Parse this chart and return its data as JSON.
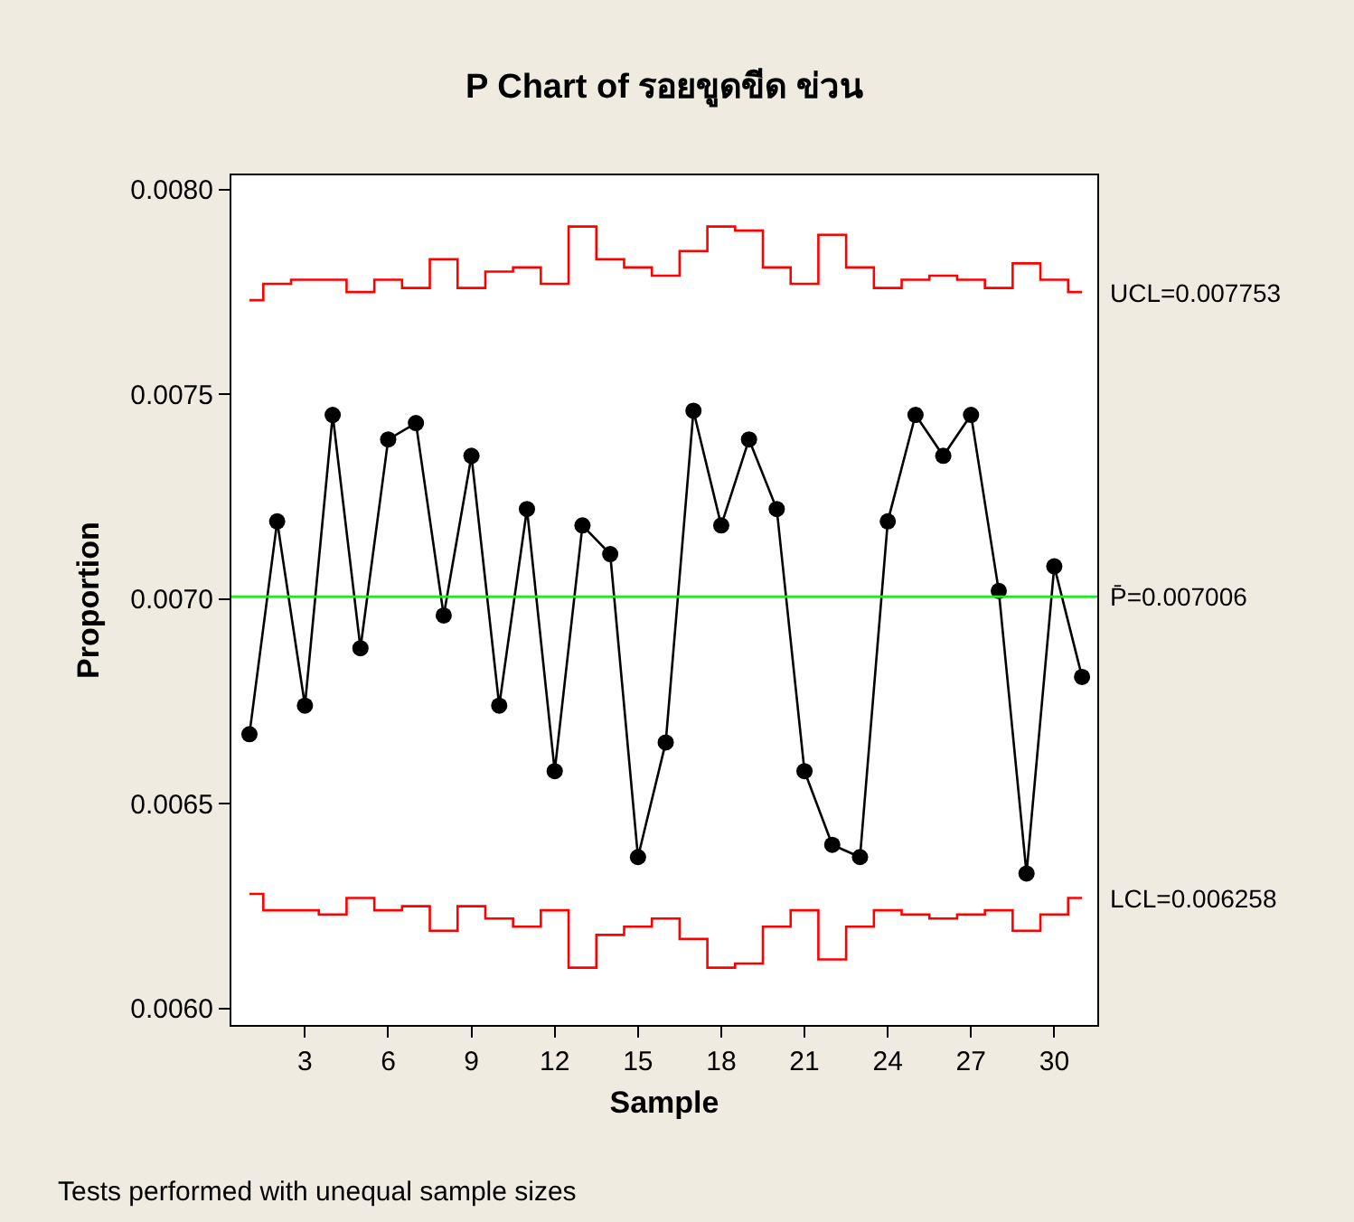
{
  "chart_data": {
    "type": "line",
    "title": "P Chart of รอยขูดขีด ข่วน",
    "xlabel": "Sample",
    "ylabel": "Proportion",
    "x": [
      1,
      2,
      3,
      4,
      5,
      6,
      7,
      8,
      9,
      10,
      11,
      12,
      13,
      14,
      15,
      16,
      17,
      18,
      19,
      20,
      21,
      22,
      23,
      24,
      25,
      26,
      27,
      28,
      29,
      30,
      31
    ],
    "series": [
      {
        "marker": "circle",
        "color": "#000000",
        "values": [
          0.00667,
          0.00719,
          0.00674,
          0.00745,
          0.00688,
          0.00739,
          0.00743,
          0.00696,
          0.00735,
          0.00674,
          0.00722,
          0.00658,
          0.00718,
          0.00711,
          0.00637,
          0.00665,
          0.00746,
          0.00718,
          0.00739,
          0.00722,
          0.00658,
          0.0064,
          0.00637,
          0.00719,
          0.00745,
          0.00735,
          0.00745,
          0.00702,
          0.00633,
          0.00708,
          0.00681
        ]
      },
      {
        "type": "step",
        "name": "UCL=0.007753",
        "color": "#ff0000",
        "values": [
          0.00773,
          0.00777,
          0.00778,
          0.00778,
          0.00775,
          0.00778,
          0.00776,
          0.00783,
          0.00776,
          0.0078,
          0.00781,
          0.00777,
          0.00791,
          0.00783,
          0.00781,
          0.00779,
          0.00785,
          0.00791,
          0.0079,
          0.00781,
          0.00777,
          0.00789,
          0.00781,
          0.00776,
          0.00778,
          0.00779,
          0.00778,
          0.00776,
          0.00782,
          0.00778,
          0.00775
        ]
      },
      {
        "type": "step",
        "name": "LCL=0.006258",
        "color": "#ff0000",
        "values": [
          0.00628,
          0.00624,
          0.00624,
          0.00623,
          0.00627,
          0.00624,
          0.00625,
          0.00619,
          0.00625,
          0.00622,
          0.0062,
          0.00624,
          0.0061,
          0.00618,
          0.0062,
          0.00622,
          0.00617,
          0.0061,
          0.00611,
          0.0062,
          0.00624,
          0.00612,
          0.0062,
          0.00624,
          0.00623,
          0.00622,
          0.00623,
          0.00624,
          0.00619,
          0.00623,
          0.00627
        ]
      }
    ],
    "ref_lines": [
      {
        "axis": "y",
        "value": 0.007006,
        "label": "P̄=0.007006",
        "color": "#00ff00",
        "line_style": "solid"
      }
    ],
    "xlim": [
      0.35,
      31.55
    ],
    "xticks": [
      3,
      6,
      9,
      12,
      15,
      18,
      21,
      24,
      27,
      30
    ],
    "ylim": [
      0.00596,
      0.008035
    ],
    "yticks": [
      {
        "value": 0.006,
        "label": "0.0060"
      },
      {
        "value": 0.0065,
        "label": "0.0065"
      },
      {
        "value": 0.007,
        "label": "0.0070"
      },
      {
        "value": 0.0075,
        "label": "0.0075"
      },
      {
        "value": 0.008,
        "label": "0.0080"
      }
    ],
    "annotations": [
      "Tests performed with unequal sample sizes"
    ],
    "grid": false,
    "legend": false
  }
}
